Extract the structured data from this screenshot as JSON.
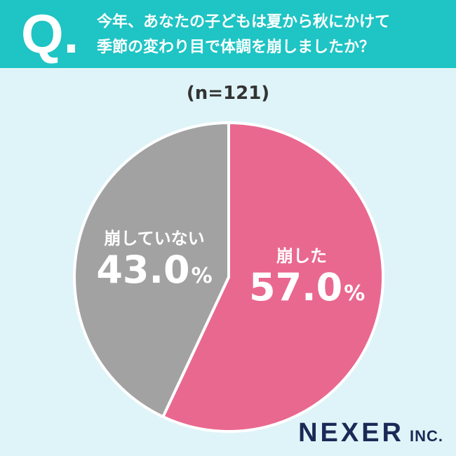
{
  "header": {
    "q_mark": "Q.",
    "question_line1": "今年、あなたの子どもは夏から秋にかけて",
    "question_line2": "季節の変わり目で体調を崩しましたか？"
  },
  "sample_size": "(n=121)",
  "logo": {
    "brand": "NEXER",
    "suffix": "INC."
  },
  "colors": {
    "header": "#1fc4c4",
    "background": "#dff4f8",
    "pink": "#e9688f",
    "gray": "#a2a2a2"
  },
  "chart_data": {
    "type": "pie",
    "slices": [
      {
        "label": "崩した",
        "value": 57.0,
        "display_value": "57.0",
        "unit": "%",
        "color": "#e9688f"
      },
      {
        "label": "崩していない",
        "value": 43.0,
        "display_value": "43.0",
        "unit": "%",
        "color": "#a2a2a2"
      }
    ]
  }
}
